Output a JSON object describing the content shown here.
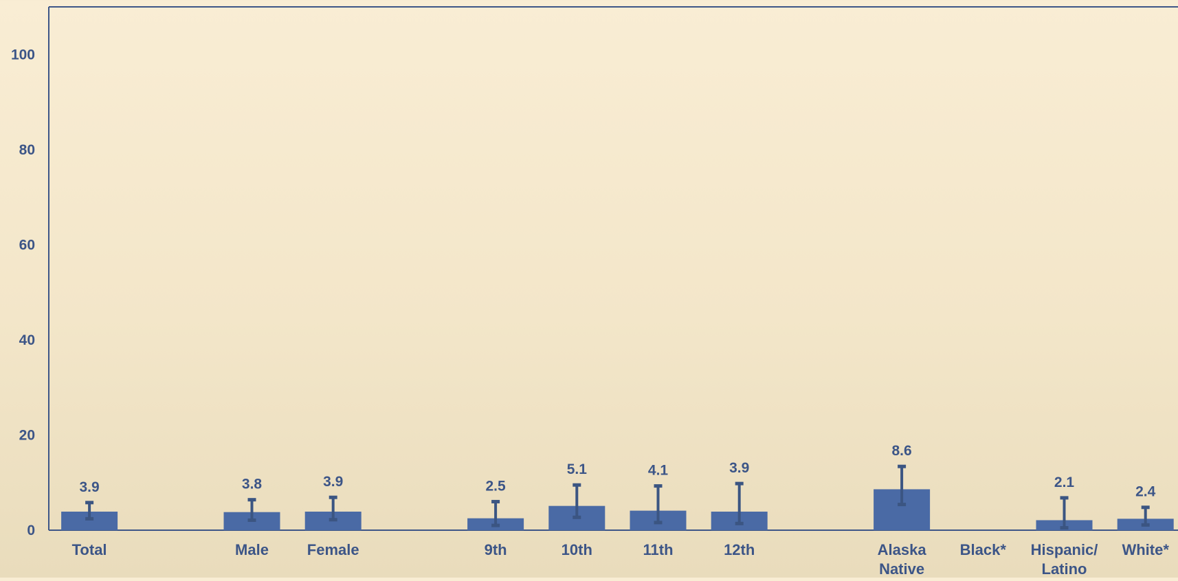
{
  "chart_data": {
    "type": "bar",
    "title": "",
    "xlabel": "",
    "ylabel": "",
    "ylim": [
      0,
      110
    ],
    "yticks": [
      0,
      20,
      40,
      60,
      80,
      100
    ],
    "grid": false,
    "legend": "none",
    "categories": [
      "Total",
      "Male",
      "Female",
      "9th",
      "10th",
      "11th",
      "12th",
      "Alaska Native",
      "Black*",
      "Hispanic/ Latino",
      "White*"
    ],
    "groups": [
      [
        "Total"
      ],
      [
        "Male",
        "Female"
      ],
      [
        "9th",
        "10th",
        "11th",
        "12th"
      ],
      [
        "Alaska Native",
        "Black*",
        "Hispanic/ Latino",
        "White*"
      ]
    ],
    "values": [
      3.9,
      3.8,
      3.9,
      2.5,
      5.1,
      4.1,
      3.9,
      8.6,
      null,
      2.1,
      2.4
    ],
    "value_labels": [
      "3.9",
      "3.8",
      "3.9",
      "2.5",
      "5.1",
      "4.1",
      "3.9",
      "8.6",
      "",
      "2.1",
      "2.4"
    ],
    "ci_lower": [
      2.4,
      2.1,
      2.2,
      1.0,
      2.7,
      1.6,
      1.4,
      5.4,
      null,
      0.5,
      1.1
    ],
    "ci_upper": [
      5.8,
      6.4,
      6.9,
      6.0,
      9.5,
      9.3,
      9.8,
      13.4,
      null,
      6.8,
      4.8
    ],
    "colors": {
      "bar": "#4a6aa5",
      "error_bar": "#3b5582",
      "text": "#3c5587",
      "axis": "#3c5587"
    }
  }
}
